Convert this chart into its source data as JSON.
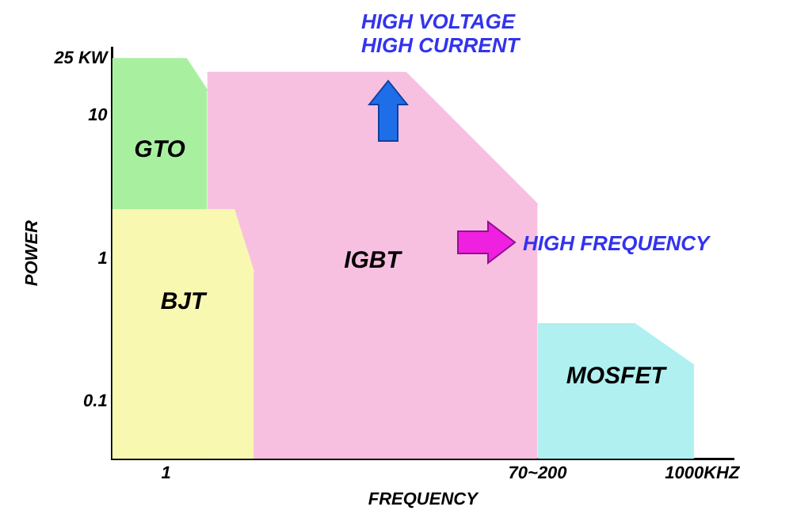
{
  "chart_data": {
    "type": "area",
    "xlabel": "FREQUENCY",
    "ylabel": "POWER",
    "log": "xy",
    "xlim": [
      0.5,
      1500
    ],
    "ylim": [
      0.04,
      30
    ],
    "xticks": [
      1,
      {
        "value": 120,
        "label": "70~200"
      },
      {
        "value": 1000,
        "label": "1000KHZ"
      }
    ],
    "yticks": [
      0.1,
      1,
      10,
      {
        "value": 25,
        "label": "25 KW"
      }
    ],
    "grid": false,
    "legend": false,
    "annotations": [
      "HIGH VOLTAGE\nHIGH CURRENT",
      "HIGH FREQUENCY"
    ],
    "series": [
      {
        "name": "IGBT",
        "color": "#f8c0e0",
        "x": [
          1.7,
          22,
          120
        ],
        "values": [
          20,
          20,
          2.4
        ]
      },
      {
        "name": "GTO",
        "color": "#a8f0a0",
        "x": [
          0.5,
          1.3,
          1.7
        ],
        "values": [
          25,
          25,
          15
        ]
      },
      {
        "name": "BJT",
        "color": "#f8f8b0",
        "x": [
          0.5,
          2.4,
          3.1
        ],
        "values": [
          2.2,
          2.2,
          0.8
        ]
      },
      {
        "name": "MOSFET",
        "color": "#b0f0f0",
        "x": [
          120,
          420,
          900
        ],
        "values": [
          0.35,
          0.35,
          0.18
        ]
      }
    ]
  }
}
